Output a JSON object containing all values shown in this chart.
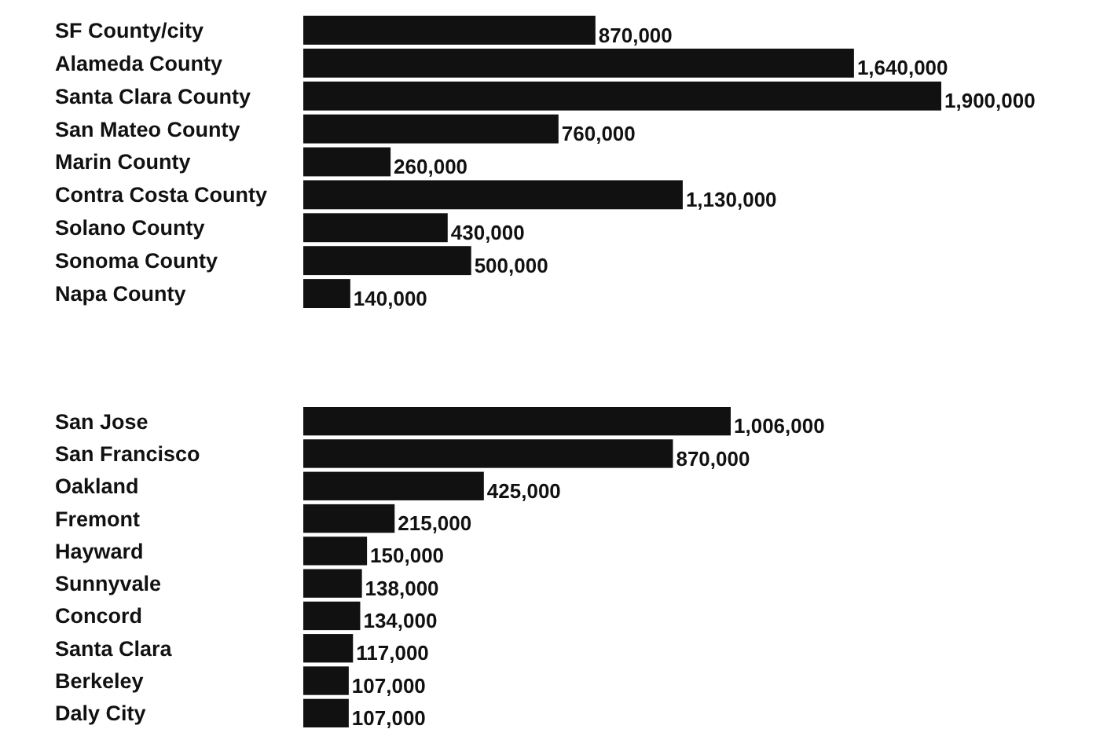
{
  "chart_data": [
    {
      "type": "bar",
      "orientation": "horizontal",
      "color": "#111111",
      "categories": [
        "SF County/city",
        "Alameda County",
        "Santa Clara County",
        "San Mateo County",
        "Marin County",
        "Contra Costa County",
        "Solano County",
        "Sonoma County",
        "Napa County"
      ],
      "values": [
        870000,
        1640000,
        1900000,
        760000,
        260000,
        1130000,
        430000,
        500000,
        140000
      ],
      "value_labels": [
        "870,000",
        "1,640,000",
        "1,900,000",
        "760,000",
        "260,000",
        "1,130,000",
        "430,000",
        "500,000",
        "140,000"
      ]
    },
    {
      "type": "bar",
      "orientation": "horizontal",
      "color": "#111111",
      "categories": [
        "San Jose",
        "San Francisco",
        "Oakland",
        "Fremont",
        "Hayward",
        "Sunnyvale",
        "Concord",
        "Santa Clara",
        "Berkeley",
        "Daly City"
      ],
      "values": [
        1006000,
        870000,
        425000,
        215000,
        150000,
        138000,
        134000,
        117000,
        107000,
        107000
      ],
      "value_labels": [
        "1,006,000",
        "870,000",
        "425,000",
        "215,000",
        "150,000",
        "138,000",
        "134,000",
        "117,000",
        "107,000",
        "107,000"
      ]
    }
  ]
}
